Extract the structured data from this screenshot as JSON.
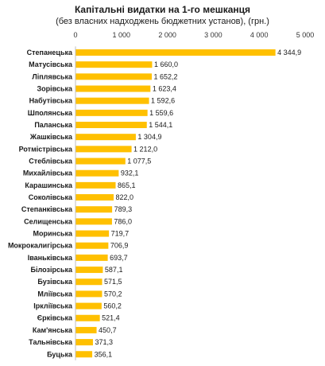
{
  "chart_data": {
    "type": "bar",
    "orientation": "horizontal",
    "title": "Капітальні видатки на 1-го мешканця",
    "subtitle": "(без власних надходжень бюджетних установ), (грн.)",
    "x_ticks": [
      0,
      1000,
      2000,
      3000,
      4000,
      5000
    ],
    "x_tick_labels": [
      "0",
      "1 000",
      "2 000",
      "3 000",
      "4 000",
      "5 000"
    ],
    "xlim": [
      0,
      5000
    ],
    "axis_position": "top",
    "grid": false,
    "bar_color": "#FFC000",
    "categories": [
      "Степанецька",
      "Матусівська",
      "Ліплявська",
      "Зорівська",
      "Набутівська",
      "Шполянська",
      "Паланська",
      "Жашківська",
      "Ротмістрівська",
      "Стеблівська",
      "Михайлівська",
      "Карашинська",
      "Соколівська",
      "Степанківська",
      "Селищенська",
      "Моринська",
      "Мокрокалигірська",
      "Іваньківська",
      "Білозірська",
      "Бузівська",
      "Мліївська",
      "Іркліївська",
      "Єрківська",
      "Кам'янська",
      "Тальнівська",
      "Буцька"
    ],
    "values": [
      4344.9,
      1660.0,
      1652.2,
      1623.4,
      1592.6,
      1559.6,
      1544.1,
      1304.9,
      1212.0,
      1077.5,
      932.1,
      865.1,
      822.0,
      789.3,
      786.0,
      719.7,
      706.9,
      693.7,
      587.1,
      571.5,
      570.2,
      560.2,
      521.4,
      450.7,
      371.3,
      356.1
    ],
    "value_labels": [
      "4 344,9",
      "1 660,0",
      "1 652,2",
      "1 623,4",
      "1 592,6",
      "1 559,6",
      "1 544,1",
      "1 304,9",
      "1 212,0",
      "1 077,5",
      "932,1",
      "865,1",
      "822,0",
      "789,3",
      "786,0",
      "719,7",
      "706,9",
      "693,7",
      "587,1",
      "571,5",
      "570,2",
      "560,2",
      "521,4",
      "450,7",
      "371,3",
      "356,1"
    ]
  }
}
